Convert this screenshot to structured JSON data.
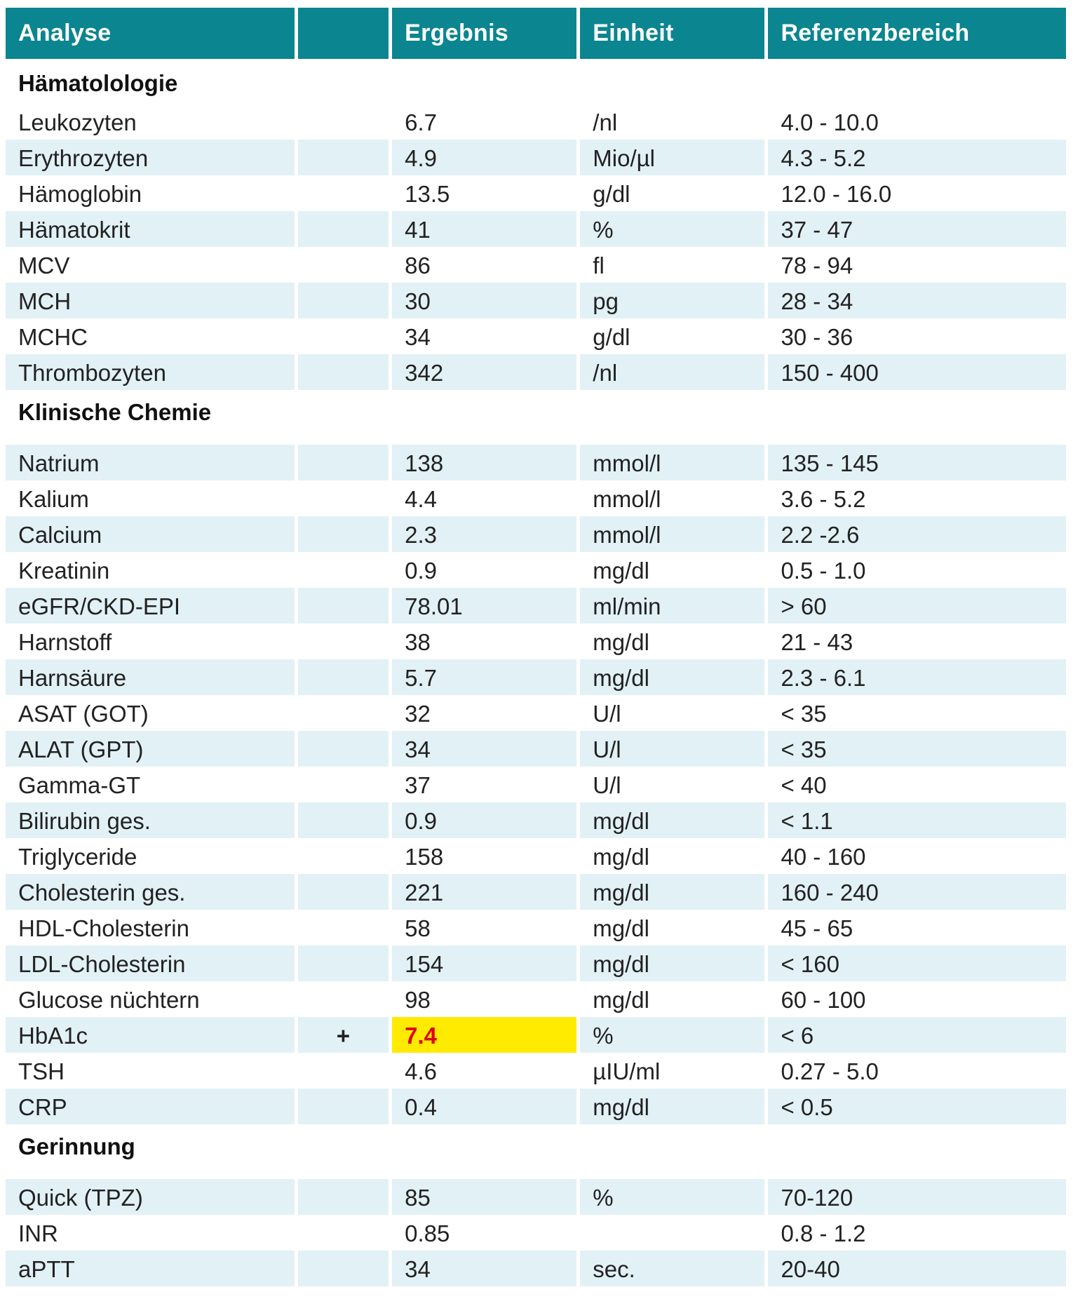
{
  "header": {
    "analyse": "Analyse",
    "flag": "",
    "ergebnis": "Ergebnis",
    "einheit": "Einheit",
    "referenzbereich": "Referenzbereich"
  },
  "sections": [
    {
      "title": "Hämatolologie",
      "rows": [
        {
          "analyse": "Leukozyten",
          "flag": "",
          "ergebnis": "6.7",
          "einheit": "/nl",
          "referenz": "4.0 - 10.0"
        },
        {
          "analyse": "Erythrozyten",
          "flag": "",
          "ergebnis": "4.9",
          "einheit": "Mio/µl",
          "referenz": "4.3 - 5.2"
        },
        {
          "analyse": "Hämoglobin",
          "flag": "",
          "ergebnis": "13.5",
          "einheit": "g/dl",
          "referenz": "12.0 - 16.0"
        },
        {
          "analyse": "Hämatokrit",
          "flag": "",
          "ergebnis": "41",
          "einheit": "%",
          "referenz": "37 - 47"
        },
        {
          "analyse": "MCV",
          "flag": "",
          "ergebnis": "86",
          "einheit": "fl",
          "referenz": "78 - 94"
        },
        {
          "analyse": "MCH",
          "flag": "",
          "ergebnis": "30",
          "einheit": "pg",
          "referenz": "28 - 34"
        },
        {
          "analyse": "MCHC",
          "flag": "",
          "ergebnis": "34",
          "einheit": "g/dl",
          "referenz": "30 - 36"
        },
        {
          "analyse": "Thrombozyten",
          "flag": "",
          "ergebnis": "342",
          "einheit": "/nl",
          "referenz": "150 - 400"
        }
      ]
    },
    {
      "title": "Klinische Chemie",
      "rows": [
        {
          "analyse": "Natrium",
          "flag": "",
          "ergebnis": "138",
          "einheit": "mmol/l",
          "referenz": "135 - 145"
        },
        {
          "analyse": "Kalium",
          "flag": "",
          "ergebnis": "4.4",
          "einheit": "mmol/l",
          "referenz": "3.6 - 5.2"
        },
        {
          "analyse": "Calcium",
          "flag": "",
          "ergebnis": "2.3",
          "einheit": "mmol/l",
          "referenz": "2.2 -2.6"
        },
        {
          "analyse": "Kreatinin",
          "flag": "",
          "ergebnis": "0.9",
          "einheit": "mg/dl",
          "referenz": "0.5 - 1.0"
        },
        {
          "analyse": "eGFR/CKD-EPI",
          "flag": "",
          "ergebnis": "78.01",
          "einheit": "ml/min",
          "referenz": "> 60"
        },
        {
          "analyse": "Harnstoff",
          "flag": "",
          "ergebnis": "38",
          "einheit": "mg/dl",
          "referenz": "21 - 43"
        },
        {
          "analyse": "Harnsäure",
          "flag": "",
          "ergebnis": "5.7",
          "einheit": "mg/dl",
          "referenz": "2.3 - 6.1"
        },
        {
          "analyse": "ASAT (GOT)",
          "flag": "",
          "ergebnis": "32",
          "einheit": "U/l",
          "referenz": "< 35"
        },
        {
          "analyse": "ALAT (GPT)",
          "flag": "",
          "ergebnis": "34",
          "einheit": "U/l",
          "referenz": "< 35"
        },
        {
          "analyse": "Gamma-GT",
          "flag": "",
          "ergebnis": "37",
          "einheit": "U/l",
          "referenz": "< 40"
        },
        {
          "analyse": "Bilirubin ges.",
          "flag": "",
          "ergebnis": "0.9",
          "einheit": "mg/dl",
          "referenz": "< 1.1"
        },
        {
          "analyse": "Triglyceride",
          "flag": "",
          "ergebnis": "158",
          "einheit": "mg/dl",
          "referenz": "40 - 160"
        },
        {
          "analyse": "Cholesterin ges.",
          "flag": "",
          "ergebnis": "221",
          "einheit": "mg/dl",
          "referenz": "160 - 240"
        },
        {
          "analyse": "HDL-Cholesterin",
          "flag": "",
          "ergebnis": "58",
          "einheit": "mg/dl",
          "referenz": "45 - 65"
        },
        {
          "analyse": "LDL-Cholesterin",
          "flag": "",
          "ergebnis": "154",
          "einheit": "mg/dl",
          "referenz": "< 160"
        },
        {
          "analyse": "Glucose nüchtern",
          "flag": "",
          "ergebnis": "98",
          "einheit": "mg/dl",
          "referenz": "60 - 100"
        },
        {
          "analyse": "HbA1c",
          "flag": "+",
          "ergebnis": "7.4",
          "einheit": "%",
          "referenz": "< 6",
          "abnormal": true
        },
        {
          "analyse": "TSH",
          "flag": "",
          "ergebnis": "4.6",
          "einheit": "µIU/ml",
          "referenz": "0.27 - 5.0"
        },
        {
          "analyse": "CRP",
          "flag": "",
          "ergebnis": "0.4",
          "einheit": "mg/dl",
          "referenz": "< 0.5"
        }
      ]
    },
    {
      "title": "Gerinnung",
      "rows": [
        {
          "analyse": "Quick (TPZ)",
          "flag": "",
          "ergebnis": "85",
          "einheit": "%",
          "referenz": "70-120"
        },
        {
          "analyse": "INR",
          "flag": "",
          "ergebnis": "0.85",
          "einheit": "",
          "referenz": "0.8 - 1.2"
        },
        {
          "analyse": "aPTT",
          "flag": "",
          "ergebnis": "34",
          "einheit": "sec.",
          "referenz": "20-40"
        }
      ]
    }
  ],
  "colors": {
    "header_bg": "#0b8590",
    "row_shade": "#e2f1f5",
    "abnormal_highlight": "#ffeb00",
    "abnormal_text": "#e0001b"
  }
}
